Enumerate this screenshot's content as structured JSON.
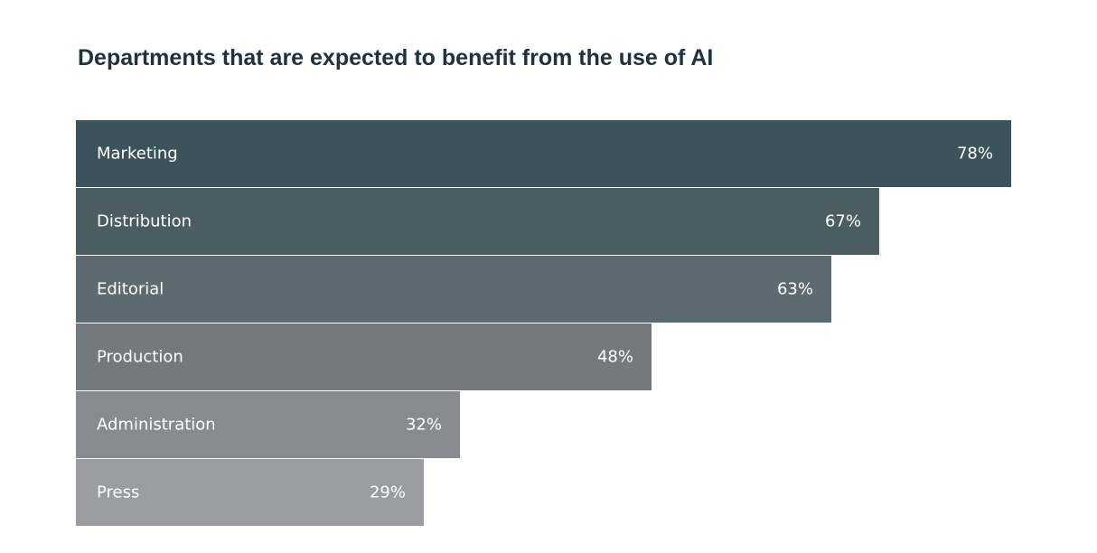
{
  "chart_data": {
    "type": "bar",
    "orientation": "horizontal",
    "title": "Departments that are expected to benefit from the use of AI",
    "xlim": [
      0,
      78
    ],
    "unit": "%",
    "grid": false,
    "legend": "none",
    "categories": [
      "Marketing",
      "Distribution",
      "Editorial",
      "Production",
      "Administration",
      "Press"
    ],
    "values": [
      78,
      67,
      63,
      48,
      32,
      29
    ],
    "value_labels": [
      "78%",
      "67%",
      "63%",
      "48%",
      "32%",
      "29%"
    ],
    "colors": [
      "#3c535b",
      "#4c5c63",
      "#5e6a71",
      "#72797f",
      "#878b90",
      "#9a9ca0"
    ]
  }
}
